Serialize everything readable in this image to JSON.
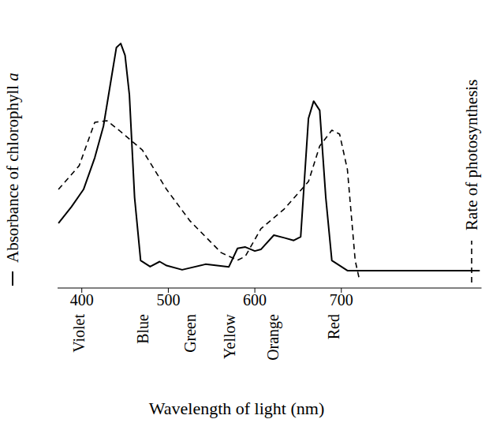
{
  "chart_data": {
    "type": "line",
    "xlabel": "Wavelength of light (nm)",
    "xlim": [
      372,
      862
    ],
    "xticks": [
      400,
      500,
      600,
      700
    ],
    "ylim": [
      0,
      100
    ],
    "y2lim": [
      0,
      100
    ],
    "tick_labels": "x",
    "annotations": [
      {
        "text": "Violet",
        "x": 397
      },
      {
        "text": "Blue",
        "x": 470
      },
      {
        "text": "Green",
        "x": 525
      },
      {
        "text": "Yellow",
        "x": 571
      },
      {
        "text": "Orange",
        "x": 621
      },
      {
        "text": "Red",
        "x": 691
      }
    ],
    "series": [
      {
        "name": "Absorbance of chlorophyll a",
        "color": "#000000",
        "line_style": "solid",
        "axis": "y",
        "x": [
          373,
          388,
          402,
          415,
          425,
          434,
          440,
          445,
          450,
          455,
          461,
          468,
          479,
          490,
          498,
          516,
          543,
          570,
          580,
          589,
          600,
          607,
          622,
          634,
          645,
          653,
          662,
          668,
          675,
          682,
          689,
          707,
          860
        ],
        "values": [
          24.5,
          30.7,
          37.3,
          49.3,
          61.2,
          79.1,
          91,
          92.5,
          88,
          73.1,
          34.3,
          10.4,
          8.1,
          10,
          8.5,
          6.9,
          9,
          8,
          15,
          15.5,
          14,
          14.6,
          20,
          19,
          18,
          19.4,
          64.2,
          70.7,
          67.2,
          34.3,
          10.4,
          6.6,
          6.6
        ]
      },
      {
        "name": "Rate of photosynthesis",
        "color": "#000000",
        "line_style": "dashed",
        "axis": "y2",
        "x": [
          373,
          397,
          415,
          429,
          443,
          470,
          498,
          525,
          561,
          580,
          589,
          607,
          634,
          662,
          675,
          689,
          698,
          707,
          716,
          721
        ],
        "values": [
          37.3,
          46.3,
          62.7,
          63.3,
          59.7,
          52.2,
          37.3,
          25.4,
          13.4,
          10.5,
          12,
          22.4,
          29.9,
          40.3,
          53.7,
          59.7,
          58.2,
          44.8,
          10.4,
          3
        ]
      }
    ]
  }
}
